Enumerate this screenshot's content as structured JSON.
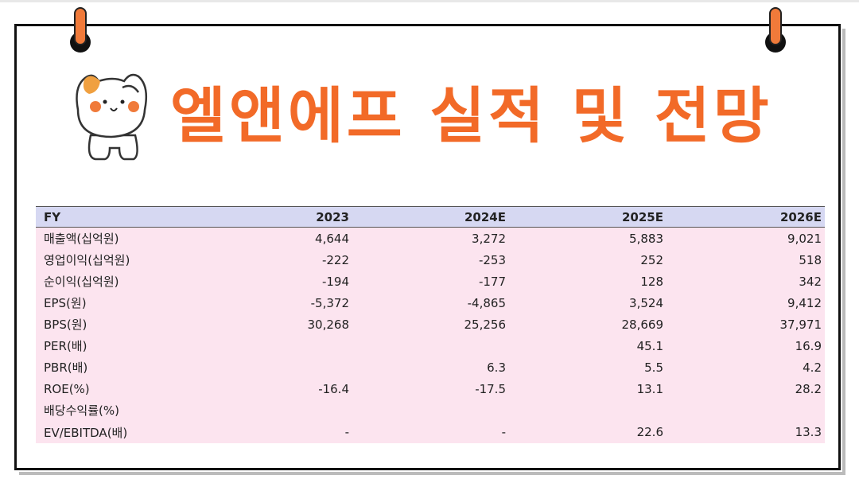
{
  "title": "엘앤에프 실적 및 전망",
  "table": {
    "headers": [
      "FY",
      "2023",
      "2024E",
      "2025E",
      "2026E"
    ],
    "rows": [
      [
        "매출액(십억원)",
        "4,644",
        "3,272",
        "5,883",
        "9,021"
      ],
      [
        "영업이익(십억원)",
        "-222",
        "-253",
        "252",
        "518"
      ],
      [
        "순이익(십억원)",
        "-194",
        "-177",
        "128",
        "342"
      ],
      [
        "EPS(원)",
        "-5,372",
        "-4,865",
        "3,524",
        "9,412"
      ],
      [
        "BPS(원)",
        "30,268",
        "25,256",
        "28,669",
        "37,971"
      ],
      [
        "PER(배)",
        "",
        "",
        "45.1",
        "16.9"
      ],
      [
        "PBR(배)",
        "",
        "6.3",
        "5.5",
        "4.2"
      ],
      [
        "ROE(%)",
        "-16.4",
        "-17.5",
        "13.1",
        "28.2"
      ],
      [
        "배당수익률(%)",
        "",
        "",
        "",
        ""
      ],
      [
        "EV/EBITDA(배)",
        "-",
        "-",
        "22.6",
        "13.3"
      ]
    ]
  },
  "colors": {
    "title": "#f26a28",
    "header_bg": "#d6d8f2",
    "row_bg": "#fce4ef",
    "pin": "#f07a3a"
  },
  "icons": {
    "mascot": "cat-mascot-icon",
    "pins": "binder-pin-icon"
  }
}
